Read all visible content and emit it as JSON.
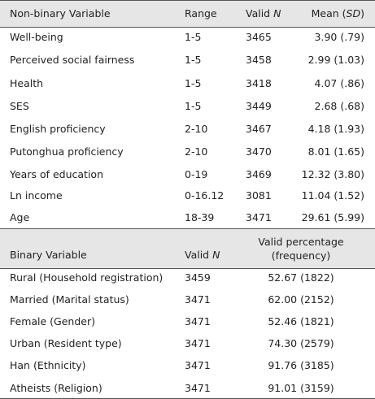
{
  "table1": {
    "header": [
      [
        {
          "text": "Non-binary Variable"
        }
      ],
      [
        {
          "text": "Range"
        }
      ],
      [
        {
          "text": "Valid "
        },
        {
          "text": "N",
          "italic": true
        }
      ],
      [
        {
          "text": "Mean ("
        },
        {
          "text": "SD",
          "italic": true
        },
        {
          "text": ")"
        }
      ]
    ],
    "rows": [
      [
        "Well-being",
        "1-5",
        "3465",
        "3.90 (.79)"
      ],
      [
        "Perceived social fairness",
        "1-5",
        "3458",
        "2.99 (1.03)"
      ],
      [
        "Health",
        "1-5",
        "3418",
        "4.07 (.86)"
      ],
      [
        "SES",
        "1-5",
        "3449",
        "2.68 (.68)"
      ],
      [
        "English proficiency",
        "2-10",
        "3467",
        "4.18 (1.93)"
      ],
      [
        "Putonghua proficiency",
        "2-10",
        "3470",
        "8.01 (1.65)"
      ],
      [
        "Years of education",
        "0-19",
        "3469",
        "12.32 (3.80)"
      ],
      [
        "Ln income",
        "0-16.12",
        "3081",
        "11.04 (1.52)"
      ],
      [
        "Age",
        "18-39",
        "3471",
        "29.61 (5.99)"
      ]
    ]
  },
  "table2": {
    "header": [
      [
        {
          "text": "Binary Variable"
        }
      ],
      [
        {
          "text": "Valid "
        },
        {
          "text": "N",
          "italic": true
        }
      ],
      [
        {
          "text": "Valid percentage"
        }
      ],
      [
        {
          "text": "(frequency)"
        }
      ]
    ],
    "rows": [
      [
        "Rural (Household registration)",
        "3459",
        "52.67 (1822)"
      ],
      [
        "Married (Marital status)",
        "3471",
        "62.00 (2152)"
      ],
      [
        "Female (Gender)",
        "3471",
        "52.46 (1821)"
      ],
      [
        "Urban (Resident type)",
        "3471",
        "74.30 (2579)"
      ],
      [
        "Han (Ethnicity)",
        "3471",
        "91.76 (3185)"
      ],
      [
        "Atheists (Religion)",
        "3471",
        "91.01 (3159)"
      ]
    ]
  }
}
